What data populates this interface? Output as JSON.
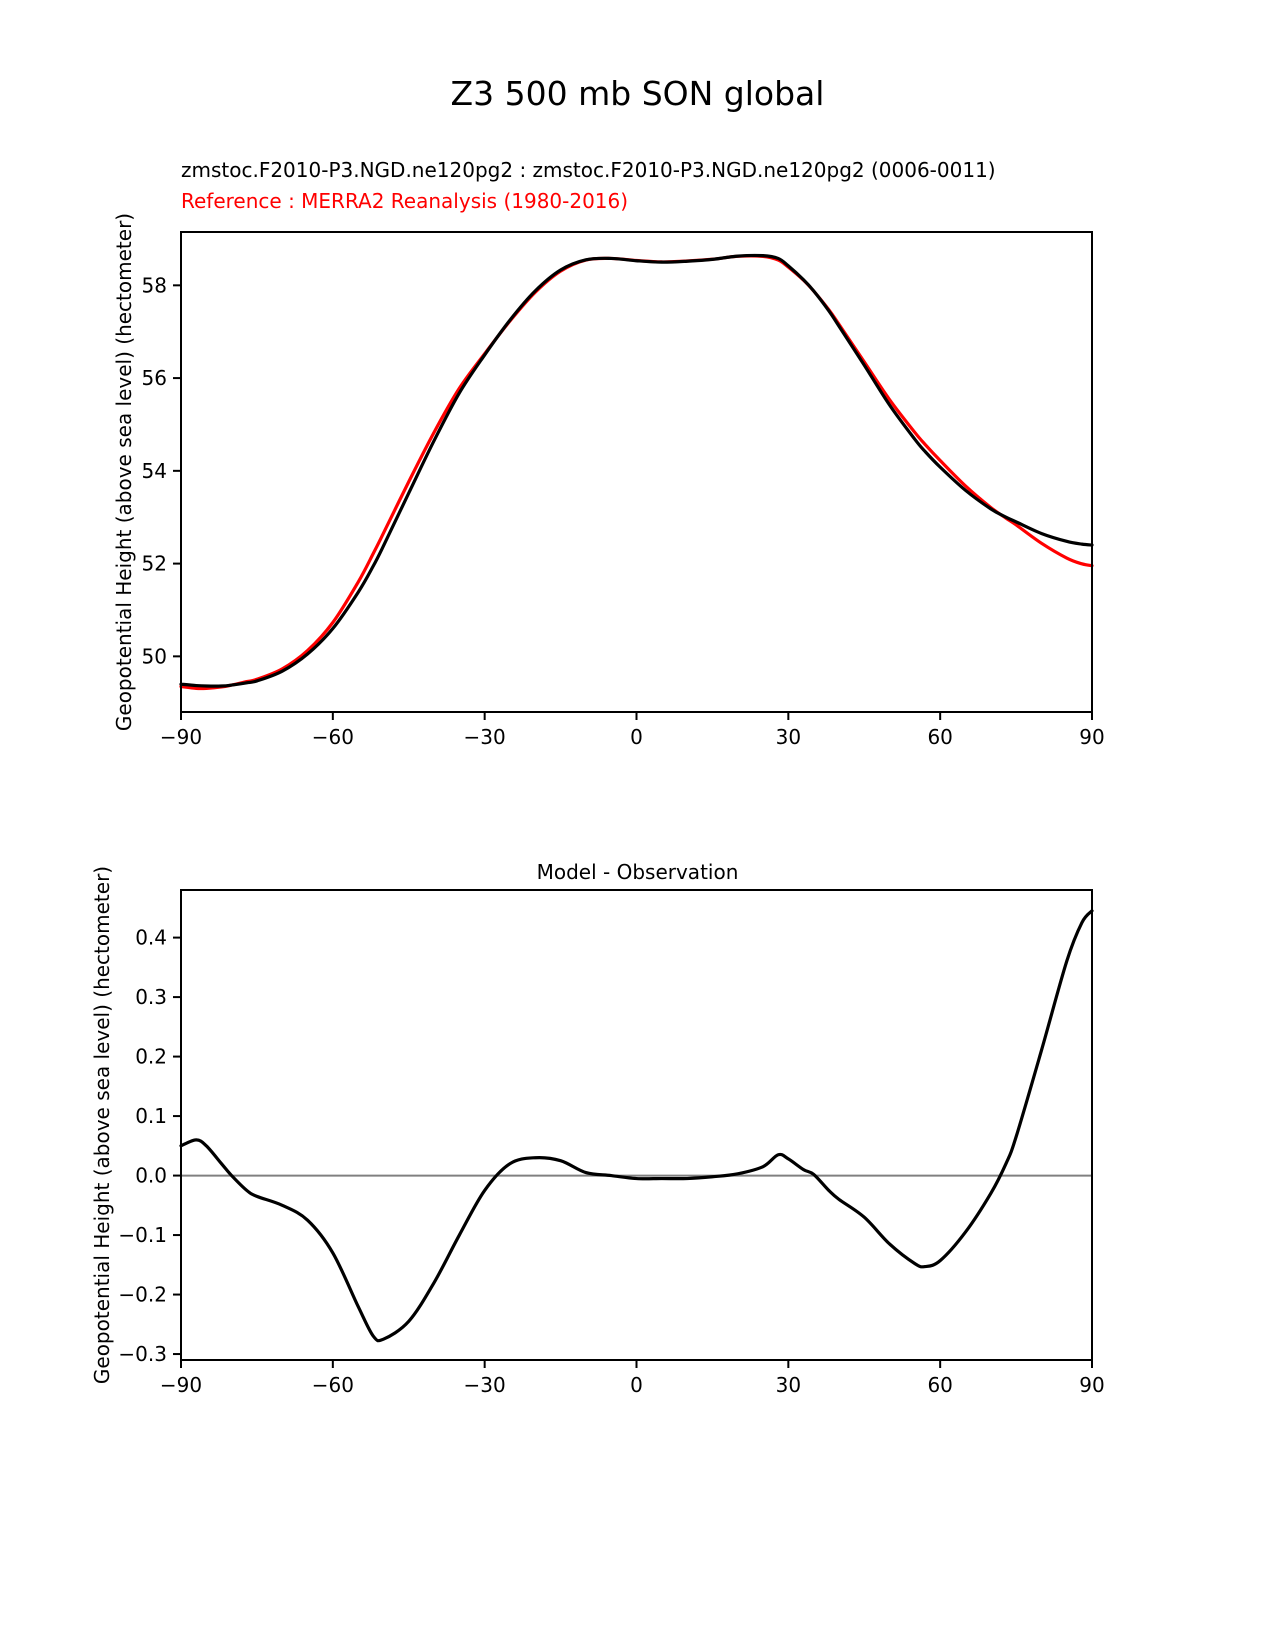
{
  "figure": {
    "title": "Z3 500 mb SON global",
    "legend": {
      "model": "zmstoc.F2010-P3.NGD.ne120pg2 : zmstoc.F2010-P3.NGD.ne120pg2 (0006-0011)",
      "reference": "Reference : MERRA2 Reanalysis (1980-2016)",
      "model_color": "#000000",
      "reference_color": "#ff0000"
    }
  },
  "chart_data": [
    {
      "type": "line",
      "title": "",
      "xlabel": "",
      "ylabel": "Geopotential Height (above sea level) (hectometer)",
      "xlim": [
        -90,
        90
      ],
      "ylim": [
        48.8,
        59.15
      ],
      "grid": false,
      "xticks": [
        -90,
        -60,
        -30,
        0,
        30,
        60,
        90
      ],
      "xtick_labels": [
        "−90",
        "−60",
        "−30",
        "0",
        "30",
        "60",
        "90"
      ],
      "yticks": [
        50,
        52,
        54,
        56,
        58
      ],
      "ytick_labels": [
        "50",
        "52",
        "54",
        "56",
        "58"
      ],
      "x": [
        -90,
        -87,
        -85,
        -82,
        -80,
        -77,
        -75,
        -70,
        -65,
        -60,
        -55,
        -52,
        -50,
        -45,
        -40,
        -35,
        -30,
        -25,
        -20,
        -15,
        -10,
        -5,
        0,
        5,
        10,
        15,
        20,
        25,
        28,
        30,
        33,
        35,
        38,
        40,
        45,
        50,
        55,
        57,
        60,
        65,
        70,
        73,
        75,
        80,
        85,
        88,
        90
      ],
      "series": [
        {
          "id": "model",
          "name": "zmstoc.F2010-P3.NGD.ne120pg2 (0006-0011)",
          "color": "#000000",
          "values": [
            49.4,
            49.37,
            49.36,
            49.36,
            49.38,
            49.43,
            49.47,
            49.68,
            50.05,
            50.6,
            51.38,
            51.95,
            52.38,
            53.52,
            54.65,
            55.68,
            56.5,
            57.25,
            57.88,
            58.33,
            58.55,
            58.58,
            58.53,
            58.5,
            58.52,
            58.56,
            58.63,
            58.64,
            58.58,
            58.42,
            58.12,
            57.88,
            57.45,
            57.12,
            56.28,
            55.42,
            54.68,
            54.42,
            54.08,
            53.58,
            53.18,
            53.0,
            52.9,
            52.65,
            52.48,
            52.42,
            52.4
          ]
        },
        {
          "id": "reference",
          "name": "MERRA2 Reanalysis (1980-2016)",
          "color": "#ff0000",
          "values": [
            49.35,
            49.31,
            49.31,
            49.34,
            49.38,
            49.455,
            49.505,
            49.73,
            50.125,
            50.73,
            51.6,
            52.22,
            52.655,
            53.765,
            54.83,
            55.78,
            56.525,
            57.23,
            57.85,
            58.305,
            58.545,
            58.58,
            58.535,
            58.505,
            58.525,
            58.562,
            58.627,
            58.625,
            58.545,
            58.392,
            58.11,
            57.878,
            57.475,
            57.16,
            56.35,
            55.535,
            54.828,
            54.573,
            54.223,
            53.675,
            53.21,
            52.98,
            52.835,
            52.44,
            52.12,
            51.995,
            51.955
          ]
        }
      ]
    },
    {
      "type": "line",
      "title": "Model - Observation",
      "xlabel": "",
      "ylabel": "Geopotential Height (above sea level) (hectometer)",
      "xlim": [
        -90,
        90
      ],
      "ylim": [
        -0.31,
        0.48
      ],
      "grid": false,
      "zero_line": true,
      "zero_line_color": "#808080",
      "xticks": [
        -90,
        -60,
        -30,
        0,
        30,
        60,
        90
      ],
      "xtick_labels": [
        "−90",
        "−60",
        "−30",
        "0",
        "30",
        "60",
        "90"
      ],
      "yticks": [
        0.4,
        0.3,
        0.2,
        0.1,
        0.0,
        -0.1,
        -0.2,
        -0.3
      ],
      "ytick_labels": [
        "0.4",
        "0.3",
        "0.2",
        "0.1",
        "0.0",
        "−0.1",
        "−0.2",
        "−0.3"
      ],
      "x": [
        -90,
        -87,
        -85,
        -82,
        -80,
        -77,
        -75,
        -70,
        -65,
        -60,
        -55,
        -52,
        -50,
        -45,
        -40,
        -35,
        -30,
        -25,
        -20,
        -15,
        -10,
        -5,
        0,
        5,
        10,
        15,
        20,
        25,
        28,
        30,
        33,
        35,
        38,
        40,
        45,
        50,
        55,
        57,
        60,
        65,
        70,
        73,
        75,
        80,
        85,
        88,
        90
      ],
      "series": [
        {
          "id": "difference",
          "name": "Model - Observation",
          "color": "#000000",
          "values": [
            0.05,
            0.06,
            0.05,
            0.02,
            0.0,
            -0.025,
            -0.035,
            -0.05,
            -0.075,
            -0.13,
            -0.22,
            -0.27,
            -0.275,
            -0.245,
            -0.18,
            -0.1,
            -0.025,
            0.02,
            0.03,
            0.025,
            0.005,
            0.0,
            -0.005,
            -0.005,
            -0.005,
            -0.002,
            0.003,
            0.015,
            0.035,
            0.028,
            0.01,
            0.002,
            -0.025,
            -0.04,
            -0.07,
            -0.115,
            -0.148,
            -0.153,
            -0.143,
            -0.095,
            -0.03,
            0.02,
            0.065,
            0.21,
            0.36,
            0.425,
            0.445
          ]
        }
      ]
    }
  ]
}
